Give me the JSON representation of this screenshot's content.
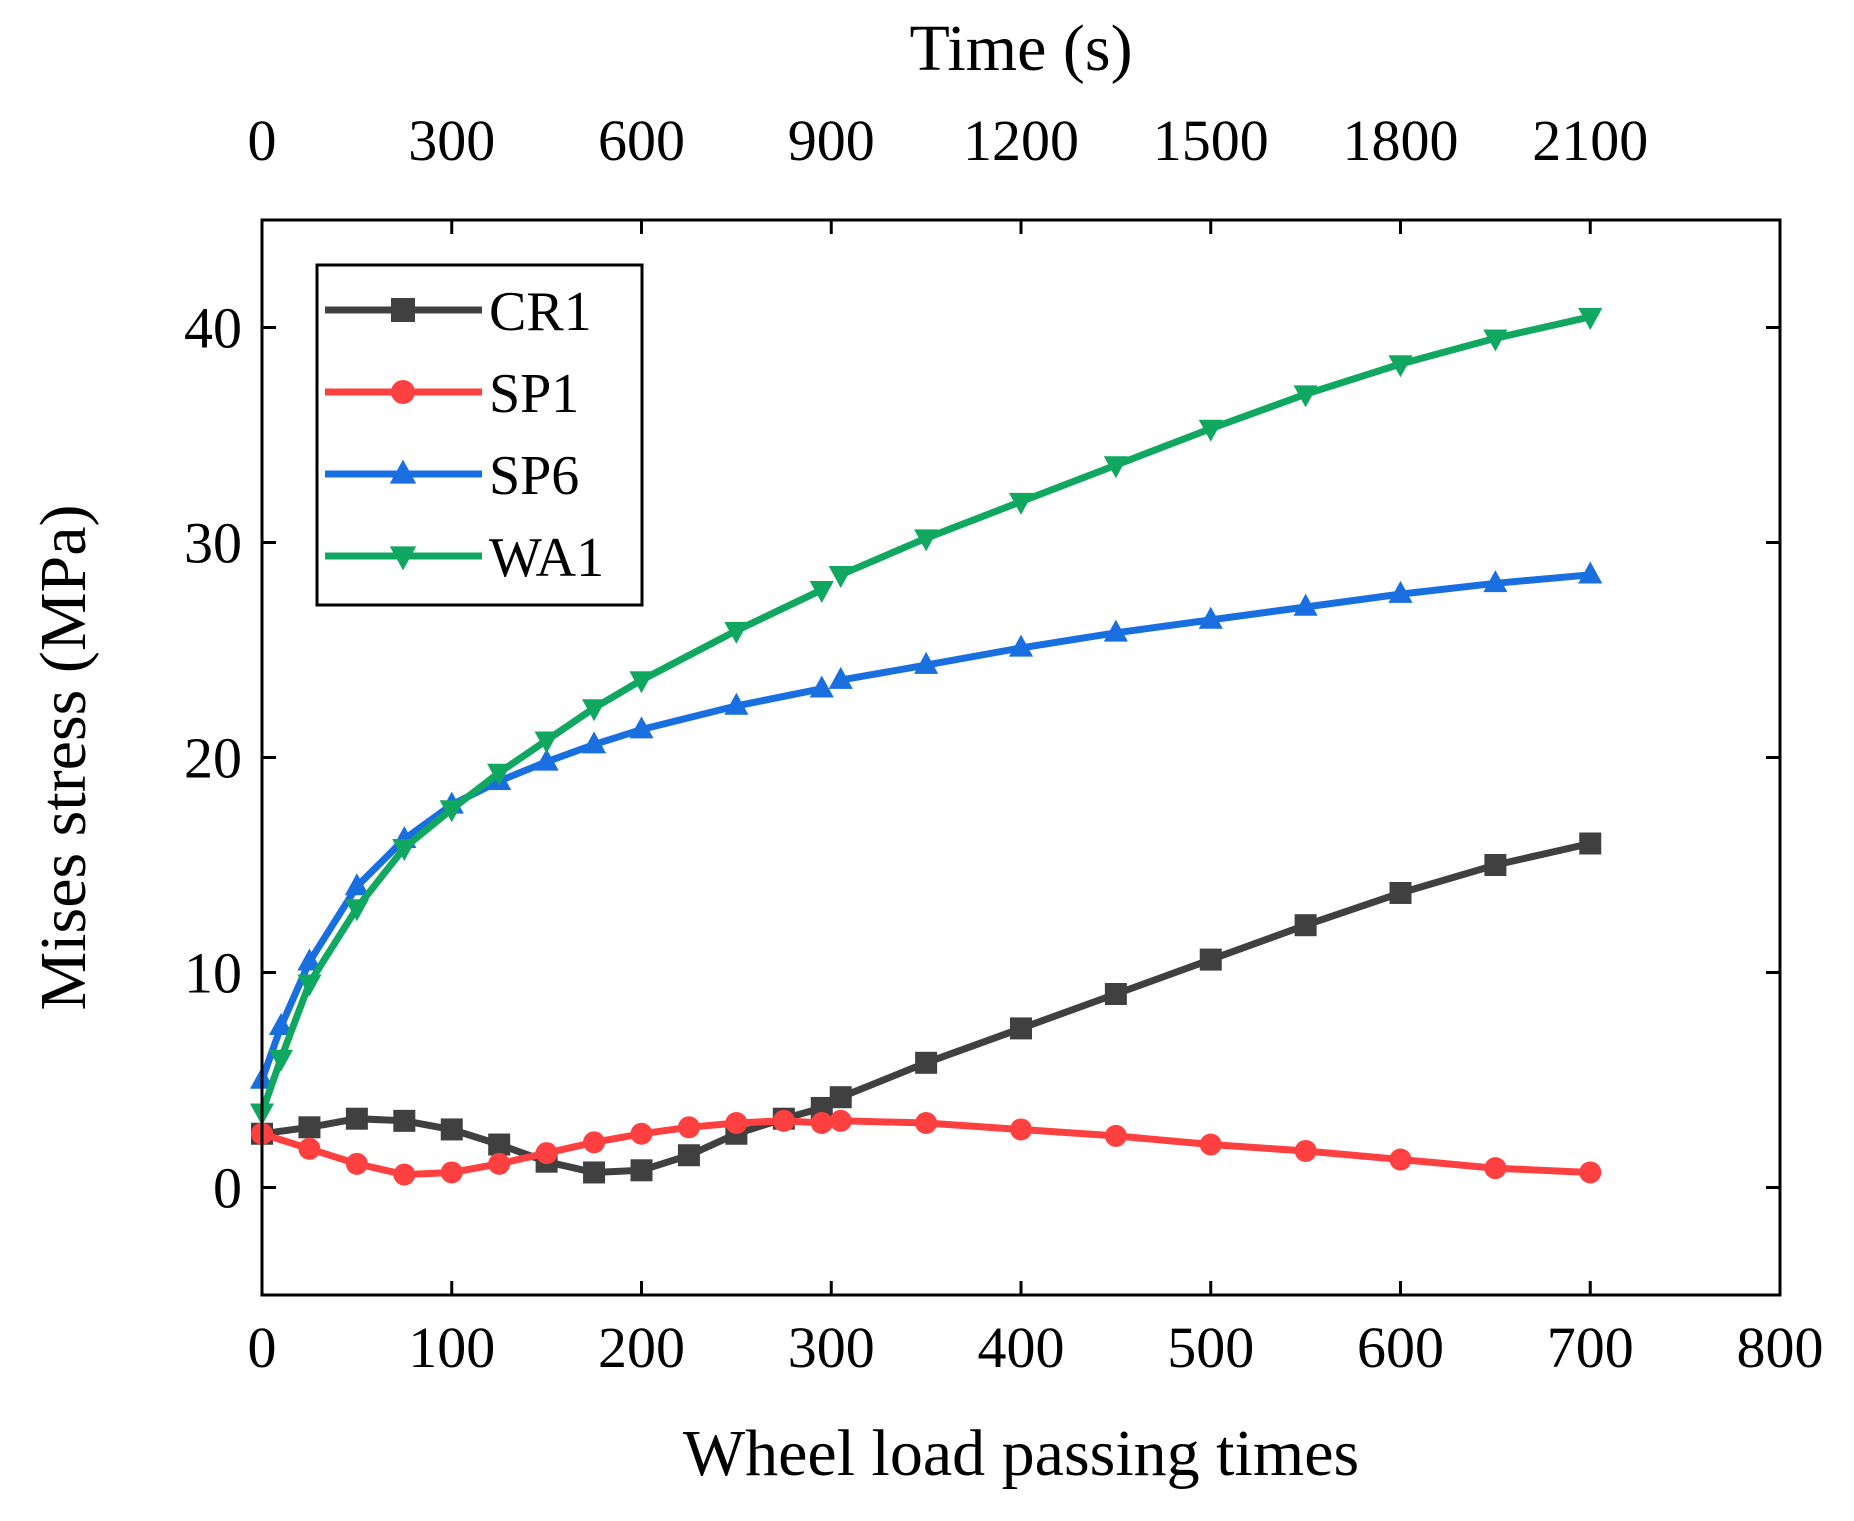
{
  "chart_data": {
    "type": "line",
    "xlabel": "Wheel load passing times",
    "x2label": "Time (s)",
    "ylabel": "Mises stress (MPa)",
    "xlim": [
      0,
      800
    ],
    "x2lim": [
      0,
      2400
    ],
    "ylim": [
      -5,
      45
    ],
    "xticks": [
      0,
      100,
      200,
      300,
      400,
      500,
      600,
      700,
      800
    ],
    "x2ticks": [
      0,
      300,
      600,
      900,
      1200,
      1500,
      1800,
      2100
    ],
    "yticks": [
      0,
      10,
      20,
      30,
      40
    ],
    "grid": false,
    "legend_position": "top-left",
    "series": [
      {
        "name": "CR1",
        "color": "#404040",
        "marker": "square",
        "x": [
          0,
          25,
          50,
          75,
          100,
          125,
          150,
          175,
          200,
          225,
          250,
          275,
          295,
          305,
          350,
          400,
          450,
          500,
          550,
          600,
          650,
          700
        ],
        "y": [
          2.5,
          2.8,
          3.2,
          3.1,
          2.7,
          2.0,
          1.2,
          0.7,
          0.8,
          1.5,
          2.5,
          3.2,
          3.7,
          4.2,
          5.8,
          7.4,
          9.0,
          10.6,
          12.2,
          13.7,
          15.0,
          16.0
        ]
      },
      {
        "name": "SP1",
        "color": "#ff4040",
        "marker": "circle",
        "x": [
          0,
          25,
          50,
          75,
          100,
          125,
          150,
          175,
          200,
          225,
          250,
          275,
          295,
          305,
          350,
          400,
          450,
          500,
          550,
          600,
          650,
          700
        ],
        "y": [
          2.5,
          1.8,
          1.1,
          0.6,
          0.7,
          1.1,
          1.6,
          2.1,
          2.5,
          2.8,
          3.0,
          3.1,
          3.0,
          3.1,
          3.0,
          2.7,
          2.4,
          2.0,
          1.7,
          1.3,
          0.9,
          0.7
        ]
      },
      {
        "name": "SP6",
        "color": "#1a6fe0",
        "marker": "triangle-up",
        "x": [
          0,
          10,
          25,
          50,
          75,
          100,
          125,
          150,
          175,
          200,
          250,
          295,
          305,
          350,
          400,
          450,
          500,
          550,
          600,
          650,
          700
        ],
        "y": [
          5.0,
          7.5,
          10.5,
          14.0,
          16.2,
          17.8,
          18.9,
          19.8,
          20.6,
          21.3,
          22.4,
          23.2,
          23.6,
          24.3,
          25.1,
          25.8,
          26.4,
          27.0,
          27.6,
          28.1,
          28.5
        ]
      },
      {
        "name": "WA1",
        "color": "#10a860",
        "marker": "triangle-down",
        "x": [
          0,
          10,
          25,
          50,
          75,
          100,
          125,
          150,
          175,
          200,
          250,
          295,
          305,
          350,
          400,
          450,
          500,
          550,
          600,
          650,
          700
        ],
        "y": [
          3.5,
          6.0,
          9.5,
          13.0,
          15.8,
          17.6,
          19.3,
          20.8,
          22.3,
          23.6,
          25.9,
          27.8,
          28.5,
          30.2,
          31.9,
          33.6,
          35.3,
          36.9,
          38.3,
          39.5,
          40.5
        ]
      }
    ]
  }
}
